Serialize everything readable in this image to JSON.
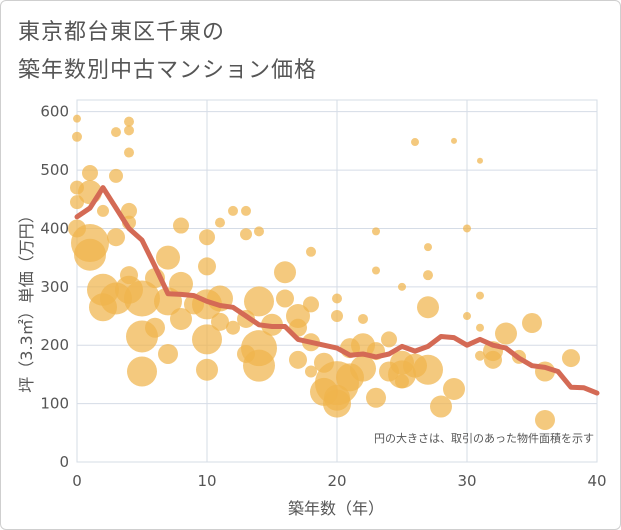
{
  "title_lines": [
    "東京都台東区千東の",
    "築年数別中古マンション価格"
  ],
  "chart_data": {
    "type": "scatter",
    "title": "東京都台東区千東の築年数別中古マンション価格",
    "xlabel": "築年数（年）",
    "ylabel": "坪（3.3㎡）単価（万円）",
    "xlim": [
      0,
      40
    ],
    "ylim": [
      0,
      620
    ],
    "xticks": [
      0,
      10,
      20,
      30,
      40
    ],
    "yticks": [
      0,
      100,
      200,
      300,
      400,
      500,
      600
    ],
    "grid": true,
    "note": "円の大きさは、取引のあった物件面積を示す",
    "bubble_color": "#f0b44c",
    "line_color": "#d46a55",
    "bubbles": [
      {
        "x": 0,
        "y": 588,
        "s": 4
      },
      {
        "x": 0,
        "y": 557,
        "s": 5
      },
      {
        "x": 0,
        "y": 470,
        "s": 7
      },
      {
        "x": 0,
        "y": 445,
        "s": 7
      },
      {
        "x": 0,
        "y": 400,
        "s": 9
      },
      {
        "x": 1,
        "y": 495,
        "s": 8
      },
      {
        "x": 1,
        "y": 462,
        "s": 12
      },
      {
        "x": 1,
        "y": 375,
        "s": 19
      },
      {
        "x": 1,
        "y": 355,
        "s": 16
      },
      {
        "x": 2,
        "y": 430,
        "s": 6
      },
      {
        "x": 2,
        "y": 295,
        "s": 16
      },
      {
        "x": 2,
        "y": 265,
        "s": 14
      },
      {
        "x": 3,
        "y": 565,
        "s": 5
      },
      {
        "x": 3,
        "y": 490,
        "s": 7
      },
      {
        "x": 3,
        "y": 385,
        "s": 9
      },
      {
        "x": 3,
        "y": 280,
        "s": 16
      },
      {
        "x": 4,
        "y": 583,
        "s": 5
      },
      {
        "x": 4,
        "y": 568,
        "s": 5
      },
      {
        "x": 4,
        "y": 530,
        "s": 5
      },
      {
        "x": 4,
        "y": 430,
        "s": 8
      },
      {
        "x": 4,
        "y": 410,
        "s": 7
      },
      {
        "x": 4,
        "y": 320,
        "s": 9
      },
      {
        "x": 4,
        "y": 295,
        "s": 14
      },
      {
        "x": 5,
        "y": 280,
        "s": 18
      },
      {
        "x": 5,
        "y": 215,
        "s": 16
      },
      {
        "x": 5,
        "y": 155,
        "s": 15
      },
      {
        "x": 6,
        "y": 315,
        "s": 10
      },
      {
        "x": 6,
        "y": 230,
        "s": 10
      },
      {
        "x": 7,
        "y": 350,
        "s": 12
      },
      {
        "x": 7,
        "y": 275,
        "s": 14
      },
      {
        "x": 7,
        "y": 185,
        "s": 10
      },
      {
        "x": 8,
        "y": 405,
        "s": 8
      },
      {
        "x": 8,
        "y": 305,
        "s": 12
      },
      {
        "x": 8,
        "y": 245,
        "s": 11
      },
      {
        "x": 9,
        "y": 270,
        "s": 10
      },
      {
        "x": 10,
        "y": 385,
        "s": 8
      },
      {
        "x": 10,
        "y": 335,
        "s": 9
      },
      {
        "x": 10,
        "y": 270,
        "s": 15
      },
      {
        "x": 10,
        "y": 210,
        "s": 15
      },
      {
        "x": 10,
        "y": 158,
        "s": 11
      },
      {
        "x": 11,
        "y": 410,
        "s": 5
      },
      {
        "x": 11,
        "y": 280,
        "s": 13
      },
      {
        "x": 11,
        "y": 240,
        "s": 9
      },
      {
        "x": 12,
        "y": 430,
        "s": 5
      },
      {
        "x": 12,
        "y": 230,
        "s": 7
      },
      {
        "x": 13,
        "y": 430,
        "s": 5
      },
      {
        "x": 13,
        "y": 390,
        "s": 6
      },
      {
        "x": 13,
        "y": 245,
        "s": 9
      },
      {
        "x": 13,
        "y": 185,
        "s": 9
      },
      {
        "x": 14,
        "y": 395,
        "s": 5
      },
      {
        "x": 14,
        "y": 275,
        "s": 15
      },
      {
        "x": 14,
        "y": 195,
        "s": 18
      },
      {
        "x": 14,
        "y": 165,
        "s": 16
      },
      {
        "x": 15,
        "y": 235,
        "s": 11
      },
      {
        "x": 16,
        "y": 325,
        "s": 11
      },
      {
        "x": 16,
        "y": 280,
        "s": 9
      },
      {
        "x": 17,
        "y": 250,
        "s": 12
      },
      {
        "x": 17,
        "y": 230,
        "s": 9
      },
      {
        "x": 17,
        "y": 175,
        "s": 9
      },
      {
        "x": 18,
        "y": 360,
        "s": 5
      },
      {
        "x": 18,
        "y": 270,
        "s": 8
      },
      {
        "x": 18,
        "y": 205,
        "s": 9
      },
      {
        "x": 18,
        "y": 155,
        "s": 6
      },
      {
        "x": 19,
        "y": 120,
        "s": 14
      },
      {
        "x": 19,
        "y": 170,
        "s": 10
      },
      {
        "x": 20,
        "y": 280,
        "s": 5
      },
      {
        "x": 20,
        "y": 250,
        "s": 6
      },
      {
        "x": 20,
        "y": 135,
        "s": 22
      },
      {
        "x": 20,
        "y": 110,
        "s": 13
      },
      {
        "x": 20,
        "y": 100,
        "s": 14
      },
      {
        "x": 21,
        "y": 195,
        "s": 10
      },
      {
        "x": 21,
        "y": 145,
        "s": 14
      },
      {
        "x": 22,
        "y": 245,
        "s": 5
      },
      {
        "x": 22,
        "y": 200,
        "s": 12
      },
      {
        "x": 22,
        "y": 160,
        "s": 13
      },
      {
        "x": 23,
        "y": 395,
        "s": 4
      },
      {
        "x": 23,
        "y": 328,
        "s": 4
      },
      {
        "x": 23,
        "y": 190,
        "s": 9
      },
      {
        "x": 23,
        "y": 110,
        "s": 10
      },
      {
        "x": 24,
        "y": 210,
        "s": 8
      },
      {
        "x": 24,
        "y": 155,
        "s": 10
      },
      {
        "x": 25,
        "y": 300,
        "s": 4
      },
      {
        "x": 25,
        "y": 170,
        "s": 12
      },
      {
        "x": 25,
        "y": 150,
        "s": 14
      },
      {
        "x": 25,
        "y": 138,
        "s": 7
      },
      {
        "x": 26,
        "y": 548,
        "s": 4
      },
      {
        "x": 26,
        "y": 165,
        "s": 12
      },
      {
        "x": 27,
        "y": 368,
        "s": 4
      },
      {
        "x": 27,
        "y": 320,
        "s": 5
      },
      {
        "x": 27,
        "y": 265,
        "s": 11
      },
      {
        "x": 27,
        "y": 158,
        "s": 15
      },
      {
        "x": 28,
        "y": 95,
        "s": 11
      },
      {
        "x": 29,
        "y": 550,
        "s": 3
      },
      {
        "x": 29,
        "y": 125,
        "s": 11
      },
      {
        "x": 30,
        "y": 400,
        "s": 4
      },
      {
        "x": 30,
        "y": 250,
        "s": 4
      },
      {
        "x": 31,
        "y": 516,
        "s": 3
      },
      {
        "x": 31,
        "y": 285,
        "s": 4
      },
      {
        "x": 31,
        "y": 230,
        "s": 4
      },
      {
        "x": 31,
        "y": 182,
        "s": 5
      },
      {
        "x": 32,
        "y": 190,
        "s": 10
      },
      {
        "x": 32,
        "y": 175,
        "s": 9
      },
      {
        "x": 33,
        "y": 220,
        "s": 11
      },
      {
        "x": 34,
        "y": 180,
        "s": 7
      },
      {
        "x": 35,
        "y": 238,
        "s": 10
      },
      {
        "x": 36,
        "y": 155,
        "s": 10
      },
      {
        "x": 36,
        "y": 72,
        "s": 10
      },
      {
        "x": 38,
        "y": 178,
        "s": 9
      }
    ],
    "line": {
      "x": [
        0,
        1,
        2,
        3,
        4,
        5,
        6,
        7,
        8,
        9,
        10,
        11,
        12,
        13,
        14,
        15,
        16,
        17,
        18,
        19,
        20,
        21,
        22,
        23,
        24,
        25,
        26,
        27,
        28,
        29,
        30,
        31,
        32,
        33,
        34,
        35,
        36,
        37,
        38,
        39,
        40
      ],
      "y": [
        420,
        435,
        470,
        435,
        400,
        380,
        335,
        288,
        287,
        285,
        275,
        268,
        265,
        250,
        235,
        232,
        232,
        210,
        205,
        200,
        195,
        183,
        185,
        180,
        185,
        198,
        190,
        198,
        215,
        213,
        200,
        210,
        200,
        195,
        178,
        165,
        162,
        155,
        128,
        127,
        118
      ]
    }
  }
}
